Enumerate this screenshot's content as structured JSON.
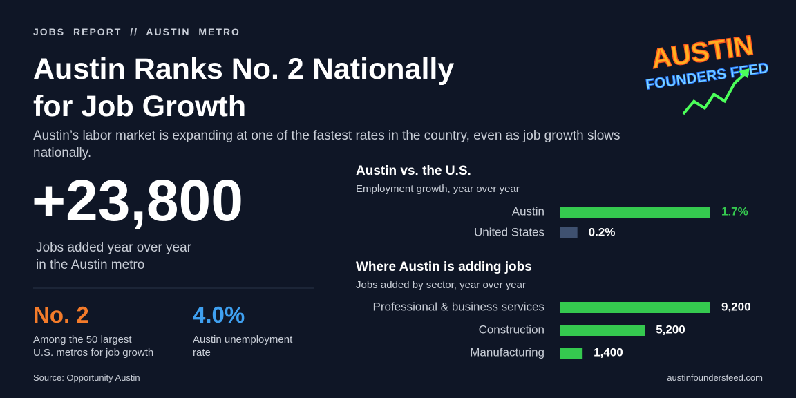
{
  "header": {
    "kicker": "JOBS REPORT // AUSTIN METRO",
    "title_line1": "Austin Ranks No. 2 Nationally",
    "title_line2": "for Job Growth",
    "subtitle": "Austin’s labor market is expanding at one of the fastest rates in the country, even as job growth slows nationally."
  },
  "logo": {
    "line1": "AUSTIN",
    "line2": "FOUNDERS FEED"
  },
  "headline_stat": {
    "value": "+23,800",
    "caption_line1": "Jobs added year over year",
    "caption_line2": "in the Austin metro"
  },
  "stats": [
    {
      "value": "No. 2",
      "color": "#f47b2a",
      "caption_line1": "Among the 50 largest",
      "caption_line2": "U.S. metros for job growth"
    },
    {
      "value": "4.0%",
      "color": "#3fa0f0",
      "caption_line1": "Austin unemployment",
      "caption_line2": "rate"
    }
  ],
  "chart_data": [
    {
      "type": "bar",
      "orientation": "horizontal",
      "title": "Austin vs. the U.S.",
      "subtitle": "Employment growth, year over year",
      "categories": [
        "Austin",
        "United States"
      ],
      "values": [
        1.7,
        0.2
      ],
      "value_labels": [
        "1.7%",
        "0.2%"
      ],
      "colors": [
        "#35c94f",
        "#3f5170"
      ],
      "value_label_colors": [
        "#35c94f",
        "#ffffff"
      ]
    },
    {
      "type": "bar",
      "orientation": "horizontal",
      "title": "Where Austin is adding jobs",
      "subtitle": "Jobs added by sector, year over year",
      "categories": [
        "Professional & business services",
        "Construction",
        "Manufacturing"
      ],
      "values": [
        9200,
        5200,
        1400
      ],
      "value_labels": [
        "9,200",
        "5,200",
        "1,400"
      ],
      "colors": [
        "#35c94f",
        "#35c94f",
        "#35c94f"
      ],
      "value_label_colors": [
        "#ffffff",
        "#ffffff",
        "#ffffff"
      ]
    }
  ],
  "footer": {
    "source": "Source: Opportunity Austin",
    "site": "austinfoundersfeed.com"
  }
}
